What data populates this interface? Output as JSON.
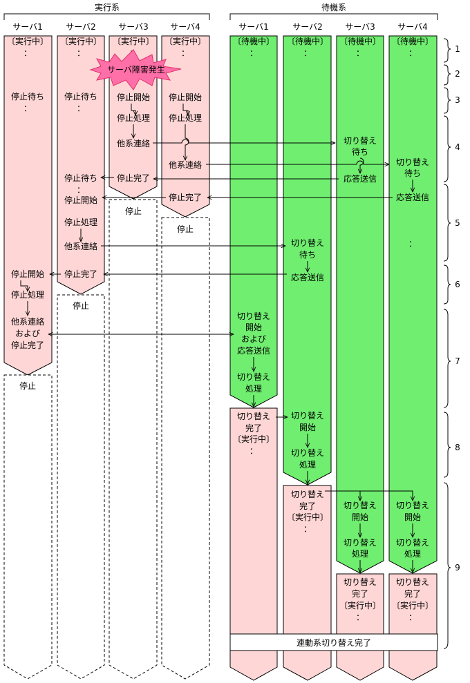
{
  "groups": {
    "active": "実行系",
    "standby": "待機系"
  },
  "servers": {
    "s1": "サーバ1",
    "s2": "サーバ2",
    "s3": "サーバ3",
    "s4": "サーバ4"
  },
  "labels": {
    "running": "〔実行中〕",
    "standbyState": "〔待機中〕",
    "dots": "：",
    "fault": "サーバ障害発生",
    "waitStop": "停止待ち",
    "stopStart": "停止開始",
    "stopProc": "停止処理",
    "otherNotify": "他系連絡",
    "stopDone": "停止完了",
    "stopped": "停止",
    "switchWait1": "切り替え",
    "switchWait2": "待ち",
    "respSend": "応答送信",
    "notifyAnd1": "他系連絡",
    "notifyAnd2": "および",
    "notifyAnd3": "停止完了",
    "swStartAnd1": "切り替え",
    "swStartAnd2": "開始",
    "swStartAnd3": "および",
    "swStartAnd4": "応答送信",
    "swProc1": "切り替え",
    "swProc2": "処理",
    "swDone1": "切り替え",
    "swDone2": "完了",
    "swStart1": "切り替え",
    "swStart2": "開始",
    "linkedDone": "連動系切り替え完了"
  },
  "steps": [
    "1",
    "2",
    "3",
    "4",
    "5",
    "6",
    "7",
    "8",
    "9"
  ],
  "colors": {
    "active": "#ffd6d6",
    "standby": "#70ee70",
    "fault": "#ff6fa8"
  }
}
